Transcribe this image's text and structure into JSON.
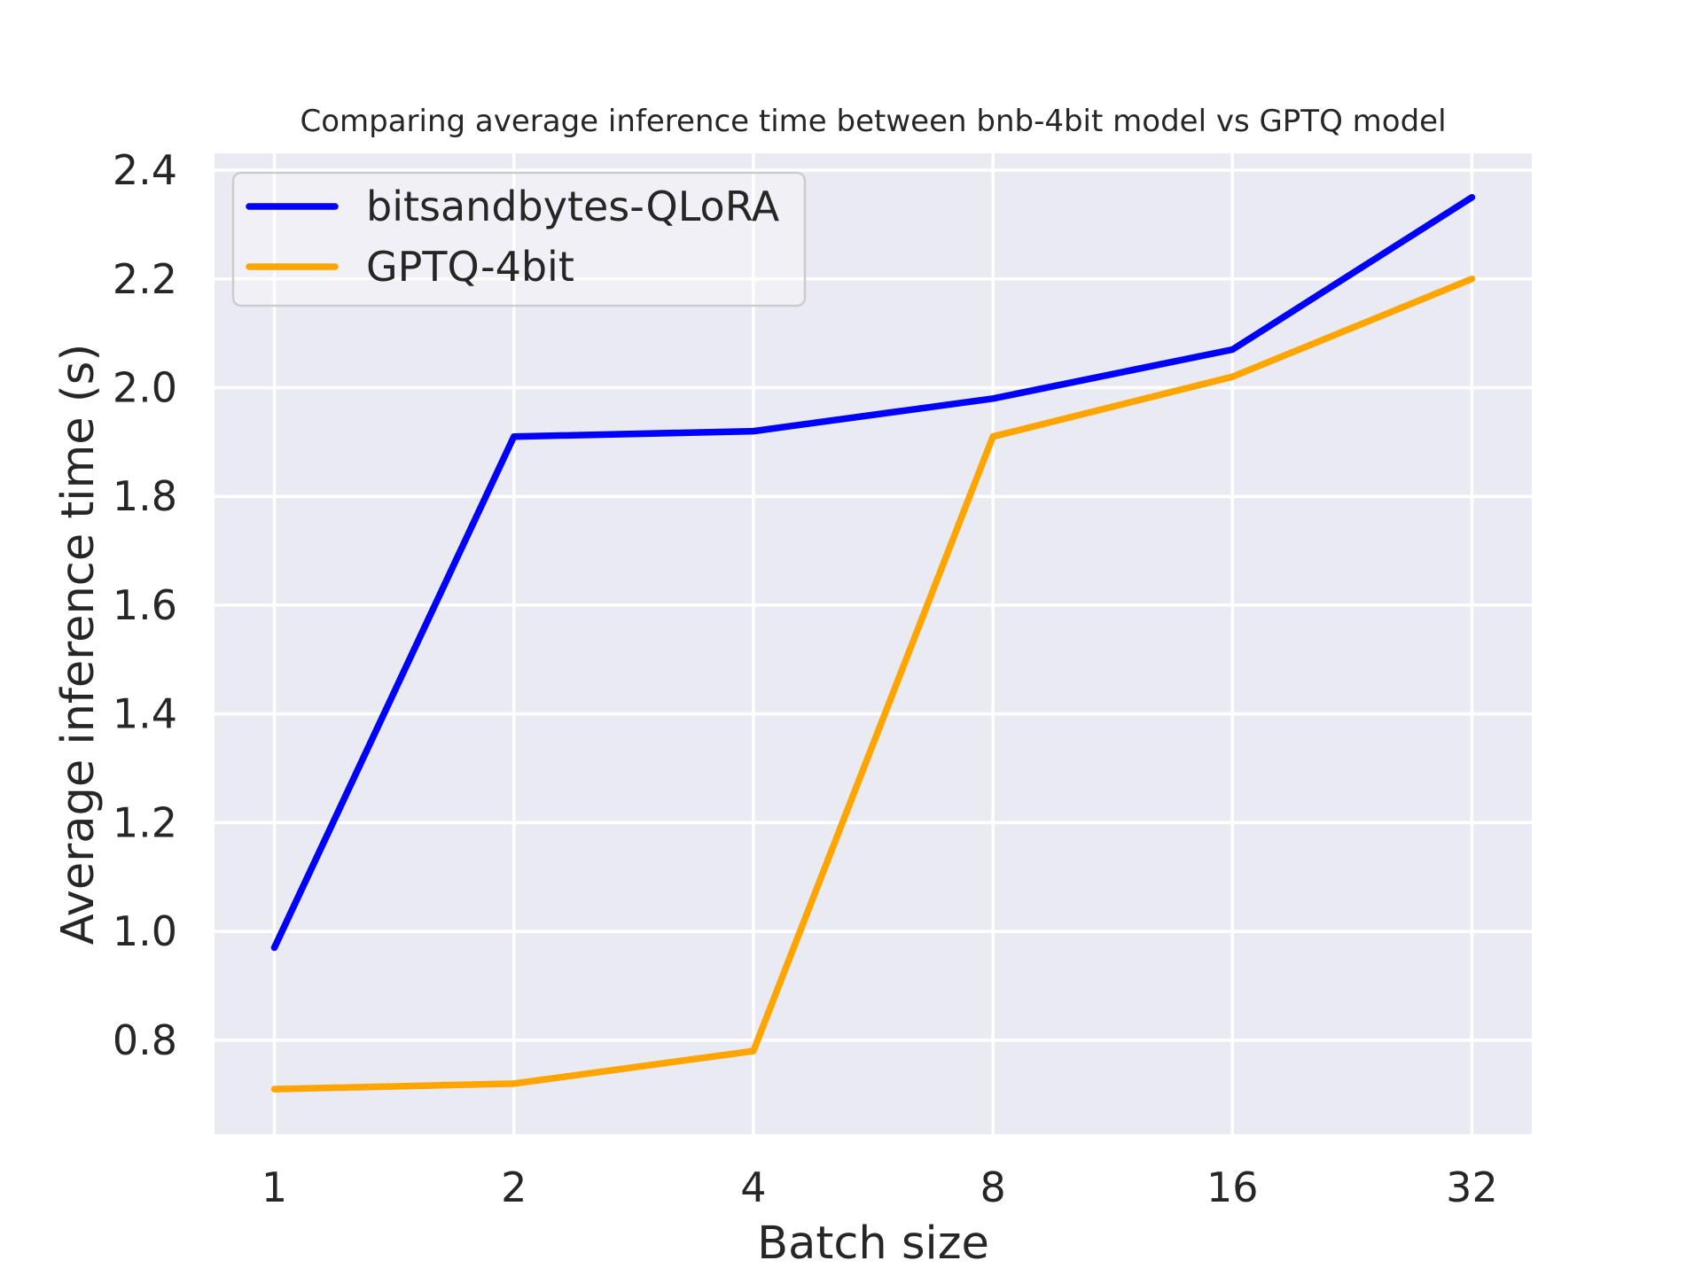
{
  "figure": {
    "background": "#ffffff",
    "axes_background": "#eaeaf2",
    "grid_color": "#ffffff",
    "text_color": "#262626",
    "legend_border_color": "#cccccc"
  },
  "chart_data": {
    "type": "line",
    "title": "Comparing average inference time between bnb-4bit model vs GPTQ model",
    "xlabel": "Batch size",
    "ylabel": "Average inference time (s)",
    "x": [
      1,
      2,
      4,
      8,
      16,
      32
    ],
    "x_scale": "log2",
    "x_tick_labels": [
      "1",
      "2",
      "4",
      "8",
      "16",
      "32"
    ],
    "y_ticks": [
      0.8,
      1.0,
      1.2,
      1.4,
      1.6,
      1.8,
      2.0,
      2.2,
      2.4
    ],
    "ylim": [
      0.627,
      2.431
    ],
    "grid": true,
    "legend_position": "upper left",
    "series": [
      {
        "name": "bitsandbytes-QLoRA",
        "color": "#0000ff",
        "values": [
          0.97,
          1.91,
          1.92,
          1.98,
          2.07,
          2.35
        ]
      },
      {
        "name": "GPTQ-4bit",
        "color": "#ffa500",
        "values": [
          0.71,
          0.72,
          0.78,
          1.91,
          2.02,
          2.2
        ]
      }
    ]
  }
}
